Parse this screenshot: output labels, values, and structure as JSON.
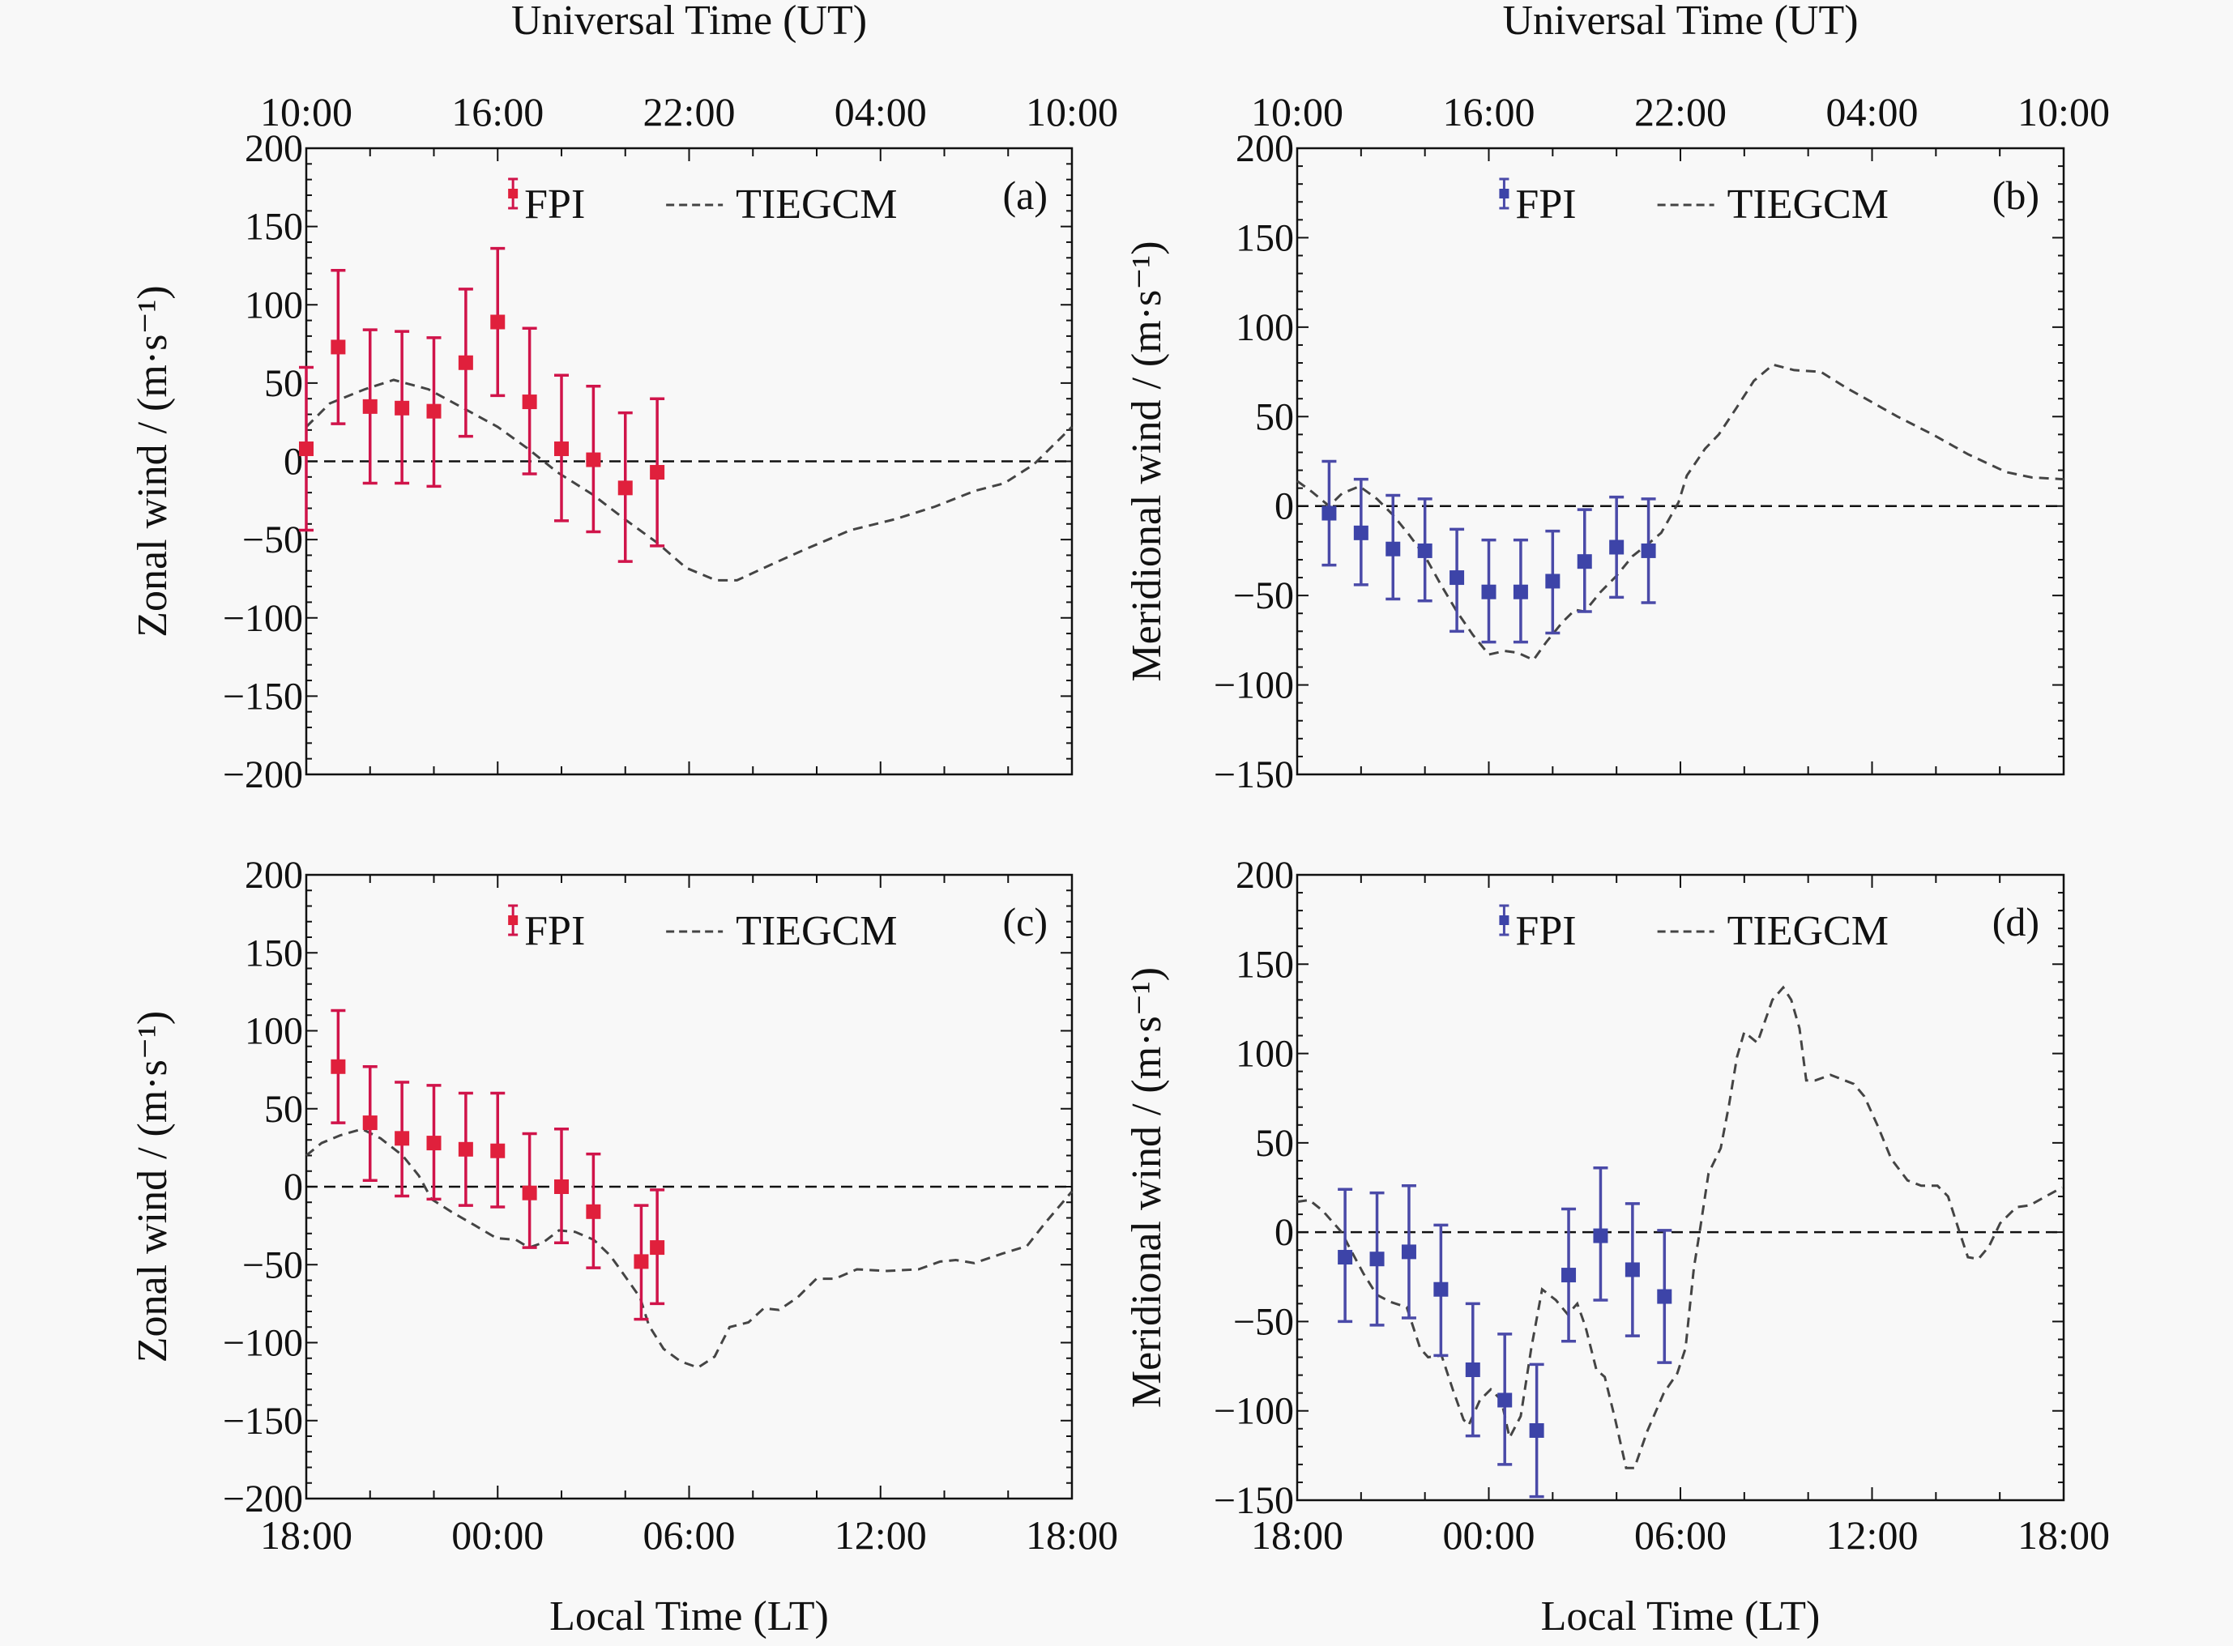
{
  "chart_data": [
    {
      "panel_id": "a",
      "type": "line",
      "panel_label": "(a)",
      "ylabel": "Zonal wind / (m·s⁻¹)",
      "top_axis_title": "Universal Time (UT)",
      "top_tick_labels": [
        "10:00",
        "16:00",
        "22:00",
        "04:00",
        "10:00"
      ],
      "bottom_axis_title": "",
      "bottom_tick_labels": [],
      "xlim_hours_from_18LT": [
        0,
        24
      ],
      "ylim": [
        -200,
        200
      ],
      "yticks": [
        -200,
        -150,
        -100,
        -50,
        0,
        50,
        100,
        150,
        200
      ],
      "ytick_labels": [
        "−200",
        "−150",
        "−100",
        "−50",
        "0",
        "50",
        "100",
        "150",
        "200"
      ],
      "legend": {
        "position": "top-center",
        "entries": [
          "FPI",
          "TIEGCM"
        ]
      },
      "fpi_color": "#e0203c",
      "errorbar_color": "#d0144a",
      "fpi": {
        "name": "FPI",
        "x_hours": [
          0,
          1,
          2,
          3,
          4,
          5,
          6,
          7,
          8,
          9,
          10,
          11
        ],
        "y": [
          8,
          73,
          35,
          34,
          32,
          63,
          89,
          38,
          8,
          1,
          -17,
          -7
        ],
        "y_upper": [
          60,
          122,
          84,
          83,
          79,
          110,
          136,
          85,
          55,
          48,
          31,
          40
        ],
        "y_lower": [
          -44,
          24,
          -14,
          -14,
          -16,
          16,
          42,
          -8,
          -38,
          -45,
          -64,
          -54
        ]
      },
      "tiegcm": {
        "name": "TIEGCM",
        "x_hours": [
          0,
          0.74,
          1.83,
          2.74,
          3.83,
          4.92,
          6.0,
          6.95,
          7.87,
          8.96,
          10.05,
          11.0,
          11.9,
          12.84,
          13.5,
          14.57,
          15.66,
          17.06,
          18.45,
          19.7,
          20.94,
          21.88,
          22.8,
          24
        ],
        "y": [
          22,
          37,
          46,
          52,
          46,
          34,
          22,
          8,
          -7,
          -21,
          -38,
          -52,
          -68,
          -76,
          -76,
          -66,
          -56,
          -44,
          -37,
          -29,
          -19,
          -14,
          -2,
          22
        ]
      }
    },
    {
      "panel_id": "b",
      "type": "line",
      "panel_label": "(b)",
      "ylabel": "Meridional wind / (m·s⁻¹)",
      "top_axis_title": "Universal Time (UT)",
      "top_tick_labels": [
        "10:00",
        "16:00",
        "22:00",
        "04:00",
        "10:00"
      ],
      "bottom_axis_title": "",
      "bottom_tick_labels": [],
      "xlim_hours_from_18LT": [
        0,
        24
      ],
      "ylim": [
        -150,
        200
      ],
      "yticks": [
        -150,
        -100,
        -50,
        0,
        50,
        100,
        150,
        200
      ],
      "ytick_labels": [
        "−150",
        "−100",
        "−50",
        "0",
        "50",
        "100",
        "150",
        "200"
      ],
      "legend": {
        "position": "top-center",
        "entries": [
          "FPI",
          "TIEGCM"
        ]
      },
      "fpi_color": "#3d44a8",
      "errorbar_color": "#4a4aa8",
      "fpi": {
        "name": "FPI",
        "x_hours": [
          1,
          2,
          3,
          4,
          5,
          6,
          7,
          8,
          9,
          10,
          11
        ],
        "y": [
          -4,
          -15,
          -24,
          -25,
          -40,
          -48,
          -48,
          -42,
          -31,
          -23,
          -25
        ],
        "y_upper": [
          25,
          15,
          6,
          4,
          -13,
          -19,
          -19,
          -14,
          -2,
          5,
          4
        ],
        "y_lower": [
          -33,
          -44,
          -52,
          -53,
          -70,
          -76,
          -76,
          -71,
          -59,
          -51,
          -54
        ]
      },
      "tiegcm": {
        "name": "TIEGCM",
        "x_hours": [
          0,
          0.46,
          1.0,
          1.4,
          1.95,
          2.5,
          3.0,
          3.5,
          4.0,
          4.5,
          5.0,
          5.5,
          6.0,
          6.5,
          6.9,
          7.4,
          7.8,
          8.3,
          8.7,
          9.0,
          9.5,
          10.0,
          10.5,
          11.0,
          11.4,
          11.94,
          12.2,
          12.77,
          13.2,
          13.76,
          14.3,
          14.9,
          15.56,
          16.4,
          17.2,
          18.0,
          18.8,
          19.9,
          21.0,
          22.2,
          23.0,
          24
        ],
        "y": [
          14,
          8,
          0,
          7,
          11,
          4,
          -5,
          -16,
          -28,
          -44,
          -59,
          -72,
          -83,
          -81,
          -82,
          -86,
          -76,
          -65,
          -58,
          -59,
          -48,
          -39,
          -28,
          -21,
          -15,
          2,
          17,
          32,
          40,
          55,
          70,
          79,
          76,
          75,
          66,
          58,
          50,
          40,
          29,
          19,
          16,
          15
        ]
      }
    },
    {
      "panel_id": "c",
      "type": "line",
      "panel_label": "(c)",
      "ylabel": "Zonal wind / (m·s⁻¹)",
      "top_axis_title": "",
      "top_tick_labels": [],
      "bottom_axis_title": "Local Time (LT)",
      "bottom_tick_labels": [
        "18:00",
        "00:00",
        "06:00",
        "12:00",
        "18:00"
      ],
      "xlim_hours_from_18LT": [
        0,
        24
      ],
      "ylim": [
        -200,
        200
      ],
      "yticks": [
        -200,
        -150,
        -100,
        -50,
        0,
        50,
        100,
        150,
        200
      ],
      "ytick_labels": [
        "−200",
        "−150",
        "−100",
        "−50",
        "0",
        "50",
        "100",
        "150",
        "200"
      ],
      "legend": {
        "position": "top-center",
        "entries": [
          "FPI",
          "TIEGCM"
        ]
      },
      "fpi_color": "#e0203c",
      "errorbar_color": "#d0144a",
      "fpi": {
        "name": "FPI",
        "x_hours": [
          1,
          2,
          3,
          4,
          5,
          6,
          7,
          8,
          9,
          10.5,
          11
        ],
        "y": [
          77,
          41,
          31,
          28,
          24,
          23,
          -4,
          0,
          -16,
          -48,
          -39
        ],
        "y_upper": [
          113,
          77,
          67,
          65,
          60,
          60,
          34,
          37,
          21,
          -12,
          -2
        ],
        "y_lower": [
          41,
          4,
          -6,
          -8,
          -12,
          -13,
          -39,
          -36,
          -52,
          -85,
          -75
        ]
      },
      "tiegcm": {
        "name": "TIEGCM",
        "x_hours": [
          0,
          0.48,
          1.07,
          1.75,
          2.33,
          3.02,
          3.53,
          3.93,
          4.54,
          5.3,
          5.96,
          6.57,
          6.98,
          7.41,
          7.92,
          8.43,
          9.01,
          9.52,
          9.77,
          10.46,
          10.74,
          11.2,
          11.73,
          12.28,
          12.8,
          13.27,
          13.86,
          14.34,
          14.82,
          15.4,
          15.99,
          16.57,
          17.26,
          18.2,
          19.19,
          19.87,
          20.36,
          20.94,
          21.8,
          22.59,
          23.17,
          24
        ],
        "y": [
          20,
          28,
          33,
          37,
          31,
          20,
          7,
          -8,
          -16,
          -25,
          -33,
          -34,
          -39,
          -36,
          -28,
          -29,
          -34,
          -44,
          -51,
          -71,
          -89,
          -104,
          -112,
          -116,
          -109,
          -90,
          -87,
          -78,
          -79,
          -71,
          -59,
          -59,
          -53,
          -54,
          -53,
          -48,
          -47,
          -49,
          -43,
          -38,
          -23,
          -3
        ]
      }
    },
    {
      "panel_id": "d",
      "type": "line",
      "panel_label": "(d)",
      "ylabel": "Meridional wind / (m·s⁻¹)",
      "top_axis_title": "",
      "top_tick_labels": [],
      "bottom_axis_title": "Local Time (LT)",
      "bottom_tick_labels": [
        "18:00",
        "00:00",
        "06:00",
        "12:00",
        "18:00"
      ],
      "xlim_hours_from_18LT": [
        0,
        24
      ],
      "ylim": [
        -150,
        200
      ],
      "yticks": [
        -150,
        -100,
        -50,
        0,
        50,
        100,
        150,
        200
      ],
      "ytick_labels": [
        "−150",
        "−100",
        "−50",
        "0",
        "50",
        "100",
        "150",
        "200"
      ],
      "legend": {
        "position": "top-center",
        "entries": [
          "FPI",
          "TIEGCM"
        ]
      },
      "fpi_color": "#3d44a8",
      "errorbar_color": "#4a4aa8",
      "fpi": {
        "name": "FPI",
        "x_hours": [
          1.5,
          2.5,
          3.5,
          4.5,
          5.5,
          6.5,
          7.5,
          8.5,
          9.5,
          10.5,
          11.5
        ],
        "y": [
          -14,
          -15,
          -11,
          -32,
          -77,
          -94,
          -111,
          -24,
          -2,
          -21,
          -36
        ],
        "y_upper": [
          24,
          22,
          26,
          4,
          -40,
          -57,
          -74,
          13,
          36,
          16,
          1
        ],
        "y_lower": [
          -50,
          -52,
          -48,
          -69,
          -114,
          -130,
          -148,
          -61,
          -38,
          -58,
          -73
        ]
      },
      "tiegcm": {
        "name": "TIEGCM",
        "x_hours": [
          0,
          0.38,
          0.8,
          1.39,
          1.65,
          2.07,
          2.49,
          2.92,
          3.43,
          3.85,
          4.1,
          4.52,
          4.87,
          5.21,
          5.37,
          5.72,
          6.06,
          6.39,
          6.65,
          7.0,
          7.33,
          7.67,
          8.1,
          8.47,
          8.77,
          9.03,
          9.37,
          9.63,
          9.96,
          10.3,
          10.56,
          10.97,
          11.48,
          11.9,
          12.16,
          12.42,
          12.6,
          12.88,
          13.26,
          13.52,
          13.77,
          14.0,
          14.41,
          14.88,
          15.22,
          15.47,
          15.73,
          15.94,
          16.23,
          16.7,
          17.43,
          17.76,
          18.19,
          18.6,
          19.11,
          19.54,
          20.05,
          20.38,
          20.74,
          21.0,
          21.33,
          21.66,
          22.01,
          22.52,
          22.93,
          23.44,
          23.95
        ],
        "y": [
          17,
          18,
          12,
          0,
          -9,
          -23,
          -35,
          -39,
          -42,
          -65,
          -70,
          -69,
          -88,
          -105,
          -108,
          -94,
          -88,
          -94,
          -115,
          -103,
          -65,
          -32,
          -38,
          -46,
          -40,
          -53,
          -77,
          -81,
          -105,
          -132,
          -132,
          -111,
          -90,
          -79,
          -65,
          -20,
          0,
          33,
          47,
          71,
          98,
          112,
          106,
          130,
          137,
          130,
          114,
          85,
          85,
          88,
          83,
          76,
          59,
          41,
          29,
          26,
          26,
          20,
          0,
          -14,
          -15,
          -8,
          5,
          14,
          15,
          20,
          25
        ]
      }
    }
  ]
}
